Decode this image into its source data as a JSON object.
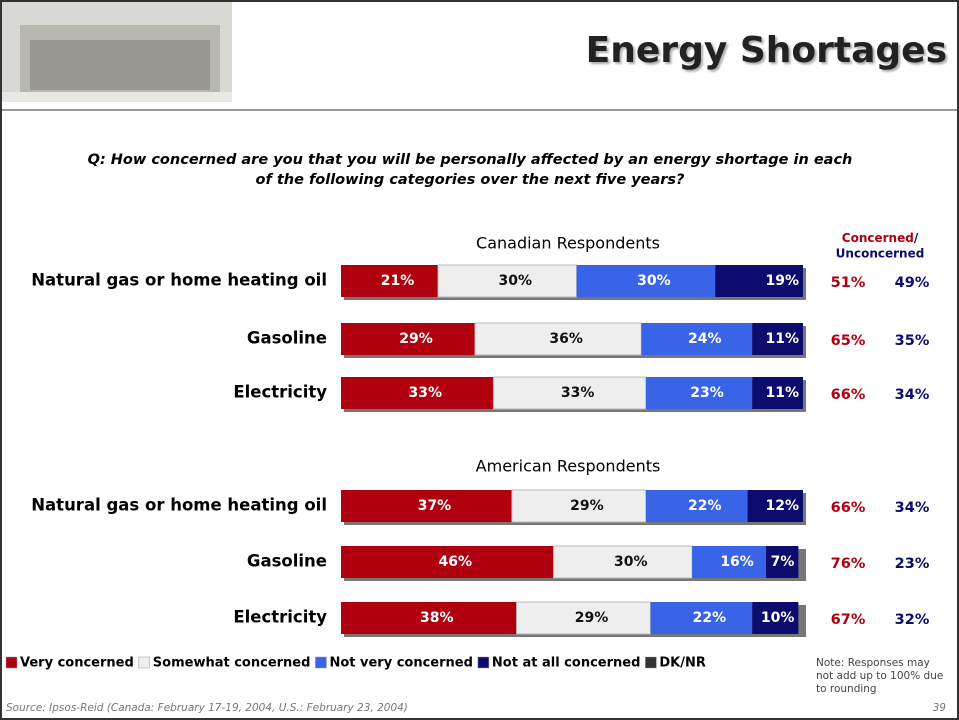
{
  "title": "Energy Shortages",
  "question": [
    "Q:  How concerned are you that you will be personally affected by an energy shortage in each",
    "of the following categories over the next five years?"
  ],
  "summary_header": {
    "concerned": "Concerned",
    "slash": "/",
    "unconcerned": "Unconcerned"
  },
  "chart_data": [
    {
      "type": "bar",
      "orientation": "horizontal",
      "stacked": true,
      "subtitle": "Canadian Respondents",
      "categories": [
        "Natural gas or home heating oil",
        "Gasoline",
        "Electricity"
      ],
      "xlim": [
        0,
        100
      ],
      "series": [
        {
          "name": "Very concerned",
          "color": "#b00010",
          "values": [
            21,
            29,
            33
          ],
          "value_labels": [
            "21%",
            "29%",
            "33%"
          ]
        },
        {
          "name": "Somewhat concerned",
          "color": "#eeeeee",
          "values": [
            30,
            36,
            33
          ],
          "value_labels": [
            "30%",
            "36%",
            "33%"
          ]
        },
        {
          "name": "Not very concerned",
          "color": "#3a64e8",
          "values": [
            30,
            24,
            23
          ],
          "value_labels": [
            "30%",
            "24%",
            "23%"
          ]
        },
        {
          "name": "Not at all concerned",
          "color": "#0c0c6e",
          "values": [
            19,
            11,
            11
          ],
          "value_labels": [
            "19%",
            "11%",
            "11%"
          ]
        }
      ],
      "concerned": [
        "51%",
        "65%",
        "66%"
      ],
      "unconcerned": [
        "49%",
        "35%",
        "34%"
      ]
    },
    {
      "type": "bar",
      "orientation": "horizontal",
      "stacked": true,
      "subtitle": "American Respondents",
      "categories": [
        "Natural gas or home heating oil",
        "Gasoline",
        "Electricity"
      ],
      "xlim": [
        0,
        100
      ],
      "series": [
        {
          "name": "Very concerned",
          "color": "#b00010",
          "values": [
            37,
            46,
            38
          ],
          "value_labels": [
            "37%",
            "46%",
            "38%"
          ]
        },
        {
          "name": "Somewhat concerned",
          "color": "#eeeeee",
          "values": [
            29,
            30,
            29
          ],
          "value_labels": [
            "29%",
            "30%",
            "29%"
          ]
        },
        {
          "name": "Not very concerned",
          "color": "#3a64e8",
          "values": [
            22,
            16,
            22
          ],
          "value_labels": [
            "22%",
            "16%",
            "22%"
          ]
        },
        {
          "name": "Not at all concerned",
          "color": "#0c0c6e",
          "values": [
            12,
            7,
            10
          ],
          "value_labels": [
            "12%",
            "7%",
            "10%"
          ]
        }
      ],
      "concerned": [
        "66%",
        "76%",
        "67%"
      ],
      "unconcerned": [
        "34%",
        "23%",
        "32%"
      ]
    }
  ],
  "legend_extra": {
    "name": "DK/NR",
    "color": "#333333"
  },
  "note": [
    "Note:  Responses may",
    "not add up to 100% due",
    "to rounding"
  ],
  "source": "Source: Ipsos-Reid (Canada: February 17-19, 2004, U.S.: February 23, 2004)",
  "page_number": "39"
}
